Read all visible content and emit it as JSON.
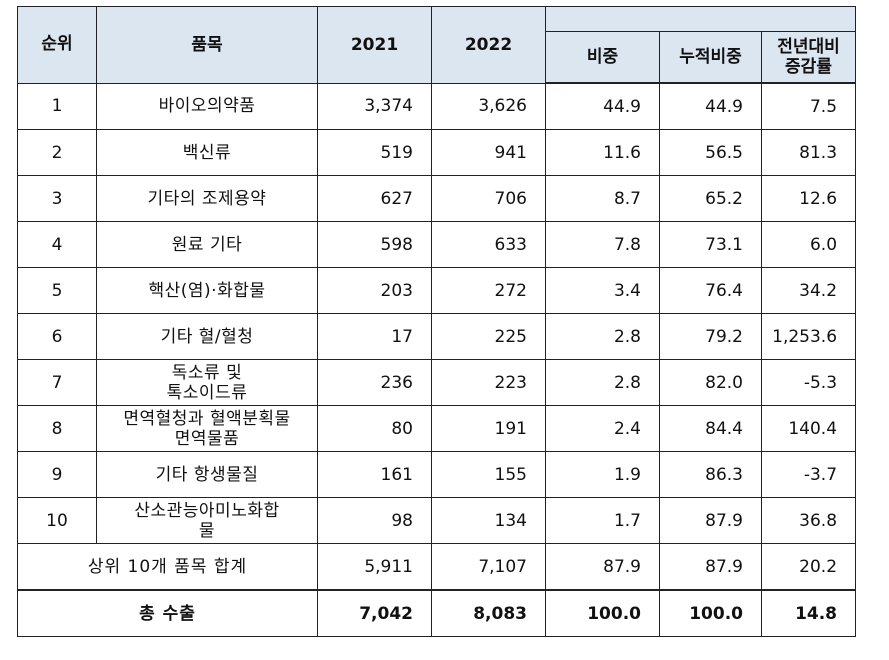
{
  "header": {
    "rank": "순위",
    "item": "품목",
    "y2021": "2021",
    "y2022": "2022",
    "share": "비중",
    "cum_share": "누적비중",
    "yoy_line1": "전년대비",
    "yoy_line2": "증감률"
  },
  "rows": [
    {
      "rank": "1",
      "item": "바이오의약품",
      "item2": "",
      "v2021": "3,374",
      "v2022": "3,626",
      "share": "44.9",
      "cum": "44.9",
      "yoy": "7.5"
    },
    {
      "rank": "2",
      "item": "백신류",
      "item2": "",
      "v2021": "519",
      "v2022": "941",
      "share": "11.6",
      "cum": "56.5",
      "yoy": "81.3"
    },
    {
      "rank": "3",
      "item": "기타의 조제용약",
      "item2": "",
      "v2021": "627",
      "v2022": "706",
      "share": "8.7",
      "cum": "65.2",
      "yoy": "12.6"
    },
    {
      "rank": "4",
      "item": "원료 기타",
      "item2": "",
      "v2021": "598",
      "v2022": "633",
      "share": "7.8",
      "cum": "73.1",
      "yoy": "6.0"
    },
    {
      "rank": "5",
      "item": "핵산(염)·화합물",
      "item2": "",
      "v2021": "203",
      "v2022": "272",
      "share": "3.4",
      "cum": "76.4",
      "yoy": "34.2"
    },
    {
      "rank": "6",
      "item": "기타 혈/혈청",
      "item2": "",
      "v2021": "17",
      "v2022": "225",
      "share": "2.8",
      "cum": "79.2",
      "yoy": "1,253.6"
    },
    {
      "rank": "7",
      "item": "독소류 및",
      "item2": "톡소이드류",
      "v2021": "236",
      "v2022": "223",
      "share": "2.8",
      "cum": "82.0",
      "yoy": "-5.3"
    },
    {
      "rank": "8",
      "item": "면역혈청과 혈액분획물",
      "item2": "면역물품",
      "v2021": "80",
      "v2022": "191",
      "share": "2.4",
      "cum": "84.4",
      "yoy": "140.4"
    },
    {
      "rank": "9",
      "item": "기타 항생물질",
      "item2": "",
      "v2021": "161",
      "v2022": "155",
      "share": "1.9",
      "cum": "86.3",
      "yoy": "-3.7"
    },
    {
      "rank": "10",
      "item": "산소관능아미노화합",
      "item2": "물",
      "v2021": "98",
      "v2022": "134",
      "share": "1.7",
      "cum": "87.9",
      "yoy": "36.8"
    }
  ],
  "subtotal": {
    "label": "상위 10개 품목 합계",
    "v2021": "5,911",
    "v2022": "7,107",
    "share": "87.9",
    "cum": "87.9",
    "yoy": "20.2"
  },
  "total": {
    "label": "총 수출",
    "v2021": "7,042",
    "v2022": "8,083",
    "share": "100.0",
    "cum": "100.0",
    "yoy": "14.8"
  }
}
